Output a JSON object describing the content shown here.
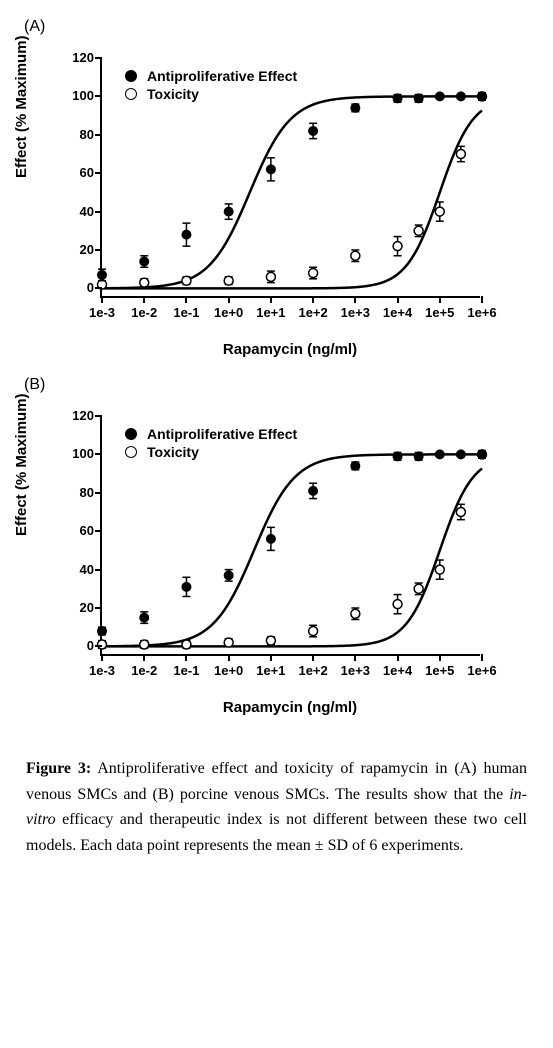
{
  "panels": {
    "A": {
      "label": "(A)"
    },
    "B": {
      "label": "(B)"
    }
  },
  "axis": {
    "ylabel": "Effect (% Maximum)",
    "xlabel": "Rapamycin (ng/ml)",
    "ylim": [
      -5,
      120
    ],
    "yticks": [
      0,
      20,
      40,
      60,
      80,
      100,
      120
    ],
    "xlog_min": -3,
    "xlog_max": 6,
    "xticks": [
      "1e-3",
      "1e-2",
      "1e-1",
      "1e+0",
      "1e+1",
      "1e+2",
      "1e+3",
      "1e+4",
      "1e+5",
      "1e+6"
    ],
    "tick_fontsize": 13,
    "label_fontsize": 15,
    "line_width": 2.5,
    "background_color": "#ffffff"
  },
  "legend": {
    "items": [
      {
        "marker": "filled",
        "label": "Antiproliferative Effect"
      },
      {
        "marker": "open",
        "label": "Toxicity"
      }
    ],
    "fontsize": 14,
    "position": "upper-left-inset"
  },
  "marker_style": {
    "radius": 4.5,
    "filled_color": "#000000",
    "open_fill": "#ffffff",
    "open_stroke": "#000000",
    "error_cap_halfwidth": 4
  },
  "series": {
    "A": {
      "anti": {
        "type": "scatter",
        "marker": "filled",
        "x_log": [
          -3,
          -2,
          -1,
          0,
          1,
          2,
          3,
          4,
          4.5,
          5,
          5.5,
          6
        ],
        "y": [
          7,
          14,
          28,
          40,
          62,
          82,
          94,
          99,
          99,
          100,
          100,
          100
        ],
        "err": [
          3,
          3,
          6,
          4,
          6,
          4,
          2,
          2,
          2,
          1,
          1,
          1
        ]
      },
      "tox": {
        "type": "scatter",
        "marker": "open",
        "x_log": [
          -3,
          -2,
          -1,
          0,
          1,
          2,
          3,
          4,
          4.5,
          5,
          5.5,
          6
        ],
        "y": [
          2,
          3,
          4,
          4,
          6,
          8,
          17,
          22,
          30,
          40,
          70,
          100
        ],
        "err": [
          2,
          2,
          2,
          2,
          3,
          3,
          3,
          5,
          3,
          5,
          4,
          2
        ]
      },
      "curve_anti": {
        "logEC50": 0.5,
        "hill": 0.9,
        "max": 100,
        "min": 0
      },
      "curve_tox": {
        "logEC50": 5.0,
        "hill": 1.1,
        "max": 100,
        "min": 0
      }
    },
    "B": {
      "anti": {
        "type": "scatter",
        "marker": "filled",
        "x_log": [
          -3,
          -2,
          -1,
          0,
          1,
          2,
          3,
          4,
          4.5,
          5,
          5.5,
          6
        ],
        "y": [
          8,
          15,
          31,
          37,
          56,
          81,
          94,
          99,
          99,
          100,
          100,
          100
        ],
        "err": [
          2,
          3,
          5,
          3,
          6,
          4,
          2,
          2,
          2,
          1,
          1,
          1
        ]
      },
      "tox": {
        "type": "scatter",
        "marker": "open",
        "x_log": [
          -3,
          -2,
          -1,
          0,
          1,
          2,
          3,
          4,
          4.5,
          5,
          5.5,
          6
        ],
        "y": [
          1,
          1,
          1,
          2,
          3,
          8,
          17,
          22,
          30,
          40,
          70,
          100
        ],
        "err": [
          2,
          2,
          2,
          2,
          2,
          3,
          3,
          5,
          3,
          5,
          4,
          2
        ]
      },
      "curve_anti": {
        "logEC50": 0.6,
        "hill": 0.9,
        "max": 100,
        "min": 0
      },
      "curve_tox": {
        "logEC50": 5.0,
        "hill": 1.1,
        "max": 100,
        "min": 0
      }
    }
  },
  "caption": {
    "lead": "Figure 3:",
    "t1": " Antiproliferative effect and toxicity of rapamycin in (A) human venous SMCs and (B) porcine venous SMCs. The results show that the ",
    "italic": "in-vitro",
    "t2": " efficacy and therapeutic index is not different between these two cell models.  Each data point represents the mean ± SD of 6 experiments."
  }
}
